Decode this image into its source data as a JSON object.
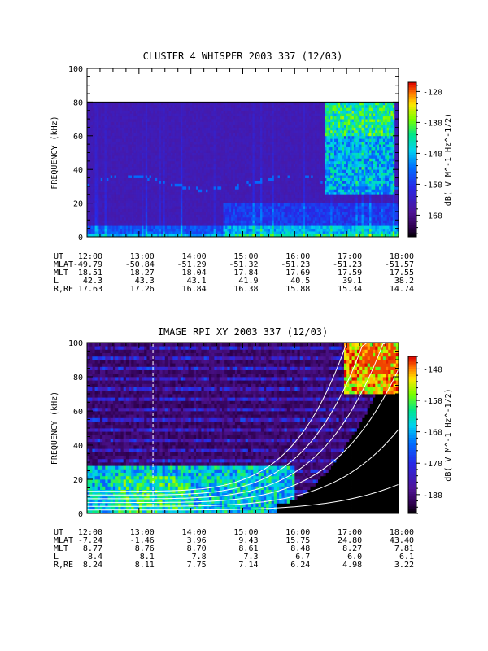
{
  "chart_data": [
    {
      "type": "heatmap",
      "title": "CLUSTER 4 WHISPER 2003 337 (12/03)",
      "ylabel": "FREQUENCY (kHz)",
      "ylim": [
        0,
        100
      ],
      "yticks": [
        0,
        20,
        40,
        60,
        80,
        100
      ],
      "x_ticks": [
        "12:00",
        "13:00",
        "14:00",
        "15:00",
        "16:00",
        "17:00",
        "18:00"
      ],
      "colorbar": {
        "label": "dB( V M^-1 Hz^-1/2)",
        "ticks": [
          -120,
          -130,
          -140,
          -150,
          -160
        ],
        "range": [
          -167,
          -117
        ]
      },
      "ephemeris": [
        {
          "label": "UT",
          "values": [
            "12:00",
            "13:00",
            "14:00",
            "15:00",
            "16:00",
            "17:00",
            "18:00"
          ]
        },
        {
          "label": "MLAT",
          "values": [
            "-49.79",
            "-50.84",
            "-51.29",
            "-51.32",
            "-51.23",
            "-51.23",
            "-51.57"
          ]
        },
        {
          "label": "MLT",
          "values": [
            "18.51",
            "18.27",
            "18.04",
            "17.84",
            "17.69",
            "17.59",
            "17.55"
          ]
        },
        {
          "label": "L",
          "values": [
            "42.3",
            "43.3",
            "43.1",
            "41.9",
            "40.5",
            "39.1",
            "38.2"
          ]
        },
        {
          "label": "R,RE",
          "values": [
            "17.63",
            "17.26",
            "16.84",
            "16.38",
            "15.88",
            "15.34",
            "14.74"
          ]
        }
      ]
    },
    {
      "type": "heatmap",
      "title": "IMAGE RPI XY 2003 337 (12/03)",
      "ylabel": "FREQUENCY (kHz)",
      "ylim": [
        0,
        100
      ],
      "yticks": [
        0,
        20,
        40,
        60,
        80,
        100
      ],
      "x_ticks": [
        "12:00",
        "13:00",
        "14:00",
        "15:00",
        "16:00",
        "17:00",
        "18:00"
      ],
      "colorbar": {
        "label": "dB( V M^-1 Hz^-1/2)",
        "ticks": [
          -140,
          -150,
          -160,
          -170,
          -180
        ],
        "range": [
          -186,
          -136
        ]
      },
      "ephemeris": [
        {
          "label": "UT",
          "values": [
            "12:00",
            "13:00",
            "14:00",
            "15:00",
            "16:00",
            "17:00",
            "18:00"
          ]
        },
        {
          "label": "MLAT",
          "values": [
            "-7.24",
            "-1.46",
            "3.96",
            "9.43",
            "15.75",
            "24.80",
            "43.40"
          ]
        },
        {
          "label": "MLT",
          "values": [
            "8.77",
            "8.76",
            "8.70",
            "8.61",
            "8.48",
            "8.27",
            "7.81"
          ]
        },
        {
          "label": "L",
          "values": [
            "8.4",
            "8.1",
            "7.8",
            "7.3",
            "6.7",
            "6.0",
            "6.1"
          ]
        },
        {
          "label": "R,RE",
          "values": [
            "8.24",
            "8.11",
            "7.75",
            "7.14",
            "6.24",
            "4.98",
            "3.22"
          ]
        }
      ]
    }
  ]
}
